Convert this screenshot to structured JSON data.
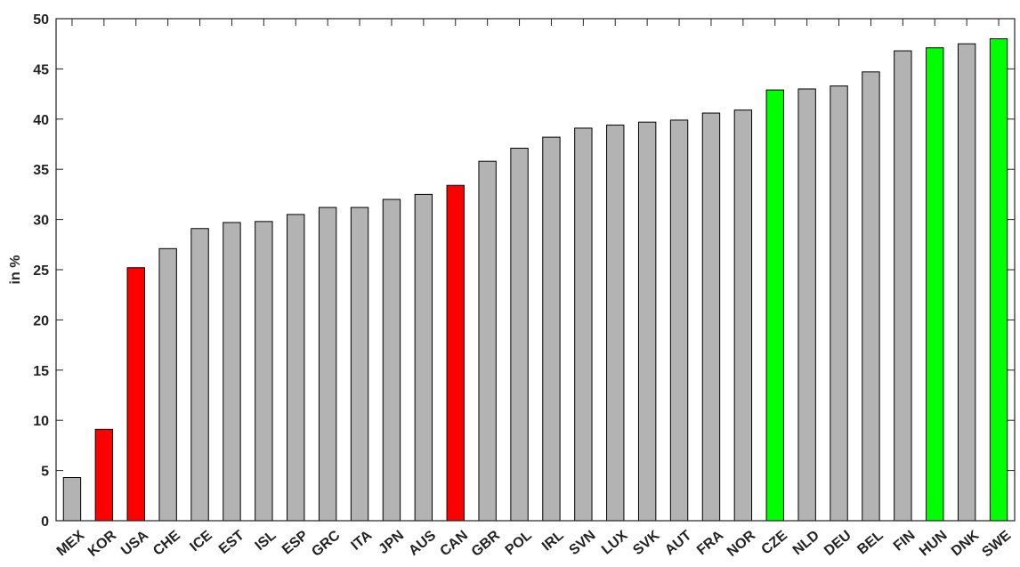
{
  "chart_data": {
    "type": "bar",
    "y_label": "in %",
    "categories": [
      "MEX",
      "KOR",
      "USA",
      "CHE",
      "ICE",
      "EST",
      "ISL",
      "ESP",
      "GRC",
      "ITA",
      "JPN",
      "AUS",
      "CAN",
      "GBR",
      "POL",
      "IRL",
      "SVN",
      "LUX",
      "SVK",
      "AUT",
      "FRA",
      "NOR",
      "CZE",
      "NLD",
      "DEU",
      "BEL",
      "FIN",
      "HUN",
      "DNK",
      "SWE"
    ],
    "values": [
      4.3,
      9.1,
      25.2,
      27.1,
      29.1,
      29.7,
      29.8,
      30.5,
      31.2,
      31.2,
      32.0,
      32.5,
      33.4,
      35.8,
      37.1,
      38.2,
      39.1,
      39.4,
      39.7,
      39.9,
      40.6,
      40.9,
      42.9,
      43.0,
      43.3,
      44.7,
      46.8,
      47.1,
      47.5,
      48.0
    ],
    "colors": [
      "#b3b3b3",
      "#ff0000",
      "#ff0000",
      "#b3b3b3",
      "#b3b3b3",
      "#b3b3b3",
      "#b3b3b3",
      "#b3b3b3",
      "#b3b3b3",
      "#b3b3b3",
      "#b3b3b3",
      "#b3b3b3",
      "#ff0000",
      "#b3b3b3",
      "#b3b3b3",
      "#b3b3b3",
      "#b3b3b3",
      "#b3b3b3",
      "#b3b3b3",
      "#b3b3b3",
      "#b3b3b3",
      "#b3b3b3",
      "#00ff00",
      "#b3b3b3",
      "#b3b3b3",
      "#b3b3b3",
      "#b3b3b3",
      "#00ff00",
      "#b3b3b3",
      "#00ff00"
    ],
    "ylim": [
      0,
      50
    ],
    "yticks": [
      0,
      5,
      10,
      15,
      20,
      25,
      30,
      35,
      40,
      45,
      50
    ],
    "grid": false
  }
}
